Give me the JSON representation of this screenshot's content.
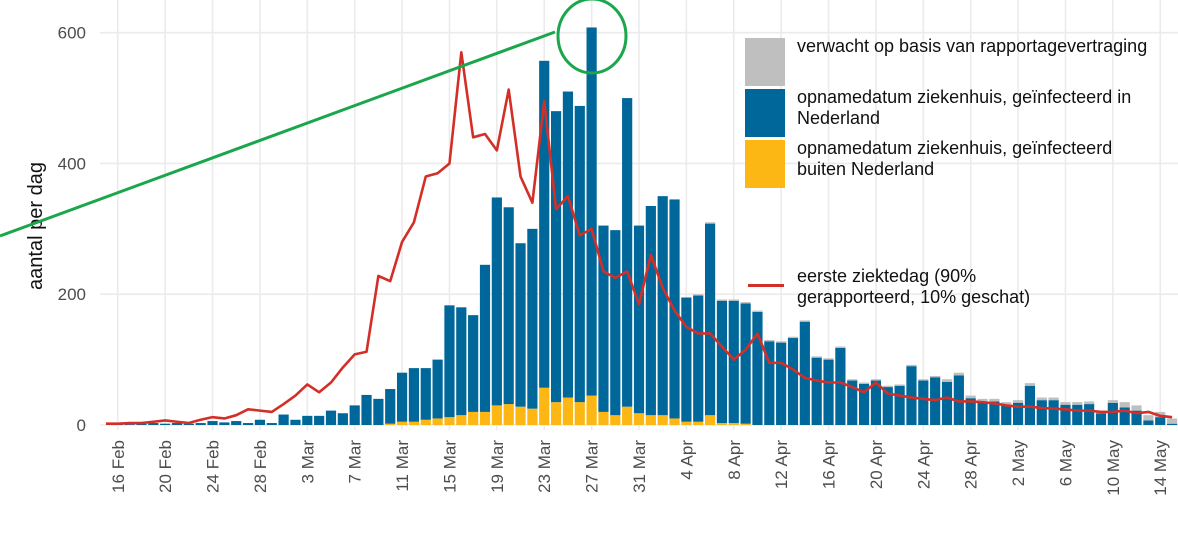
{
  "chart_data": {
    "type": "bar",
    "stacked": true,
    "y_label": "aantal per dag",
    "ylim": [
      0,
      650
    ],
    "yticks": [
      0,
      200,
      400,
      600
    ],
    "grid": true,
    "legend": "top-right",
    "categories": [
      null,
      "16 Feb",
      null,
      null,
      null,
      "20 Feb",
      null,
      null,
      null,
      "24 Feb",
      null,
      null,
      null,
      "28 Feb",
      null,
      null,
      null,
      "3 Mar",
      null,
      null,
      null,
      "7 Mar",
      null,
      null,
      null,
      "11 Mar",
      null,
      null,
      null,
      "15 Mar",
      null,
      null,
      null,
      "19 Mar",
      null,
      null,
      null,
      "23 Mar",
      null,
      null,
      null,
      "27 Mar",
      null,
      null,
      null,
      "31 Mar",
      null,
      null,
      null,
      "4 Apr",
      null,
      null,
      null,
      "8 Apr",
      null,
      null,
      null,
      "12 Apr",
      null,
      null,
      null,
      "16 Apr",
      null,
      null,
      null,
      "20 Apr",
      null,
      null,
      null,
      "24 Apr",
      null,
      null,
      null,
      "28 Apr",
      null,
      null,
      null,
      "2 May",
      null,
      null,
      null,
      "6 May",
      null,
      null,
      null,
      "10 May",
      null,
      null,
      null,
      "14 May",
      null
    ],
    "series": [
      {
        "name": "verwacht op basis van rapportagevertraging",
        "color": "#bfbfbf",
        "type": "bar",
        "values": [
          0,
          0,
          0,
          0,
          0,
          0,
          0,
          0,
          0,
          0,
          0,
          0,
          0,
          0,
          0,
          0,
          0,
          0,
          0,
          0,
          0,
          0,
          0,
          0,
          0,
          0,
          0,
          0,
          0,
          0,
          0,
          0,
          0,
          0,
          0,
          0,
          0,
          0,
          0,
          0,
          0,
          0,
          0,
          0,
          0,
          0,
          0,
          0,
          0,
          0,
          2,
          2,
          2,
          2,
          2,
          2,
          2,
          2,
          2,
          2,
          2,
          2,
          2,
          2,
          2,
          2,
          2,
          2,
          2,
          2,
          2,
          4,
          4,
          4,
          4,
          4,
          4,
          4,
          4,
          4,
          4,
          4,
          4,
          4,
          4,
          4,
          8,
          8,
          8,
          8,
          8
        ]
      },
      {
        "name": "opnamedatum ziekenhuis, geïnfecteerd in Nederland",
        "color": "#00679b",
        "type": "bar",
        "values": [
          0,
          2,
          1,
          2,
          3,
          2,
          3,
          2,
          3,
          6,
          4,
          6,
          3,
          8,
          3,
          16,
          8,
          14,
          14,
          22,
          18,
          30,
          46,
          40,
          53,
          75,
          82,
          79,
          90,
          171,
          165,
          148,
          225,
          318,
          301,
          250,
          275,
          500,
          445,
          468,
          453,
          563,
          285,
          283,
          472,
          287,
          320,
          335,
          335,
          190,
          193,
          293,
          187,
          187,
          184,
          173,
          128,
          126,
          133,
          158,
          103,
          100,
          118,
          68,
          63,
          68,
          58,
          60,
          90,
          68,
          73,
          66,
          76,
          41,
          36,
          36,
          31,
          34,
          60,
          38,
          38,
          31,
          31,
          32,
          18,
          34,
          27,
          22,
          7,
          12,
          2
        ]
      },
      {
        "name": "opnamedatum ziekenhuis, geïnfecteerd buiten Nederland",
        "color": "#fcb714",
        "type": "bar",
        "values": [
          0,
          0,
          0,
          0,
          0,
          0,
          0,
          0,
          0,
          0,
          0,
          0,
          0,
          0,
          0,
          0,
          0,
          0,
          0,
          0,
          0,
          0,
          0,
          0,
          2,
          5,
          5,
          8,
          10,
          12,
          15,
          20,
          20,
          30,
          32,
          28,
          25,
          57,
          35,
          42,
          35,
          45,
          20,
          15,
          28,
          18,
          15,
          15,
          10,
          5,
          5,
          15,
          3,
          3,
          2,
          0,
          0,
          0,
          0,
          0,
          0,
          0,
          0,
          0,
          0,
          0,
          0,
          0,
          0,
          0,
          0,
          0,
          0,
          0,
          0,
          0,
          0,
          0,
          0,
          0,
          0,
          0,
          0,
          0,
          0,
          0,
          0,
          0,
          0,
          0,
          0
        ]
      },
      {
        "name": "eerste ziektedag (90% gerapporteerd, 10% geschat)",
        "color": "#d42f27",
        "type": "line",
        "values": [
          2,
          2,
          3,
          3,
          5,
          7,
          5,
          3,
          8,
          12,
          10,
          15,
          24,
          22,
          20,
          32,
          45,
          62,
          50,
          65,
          88,
          108,
          112,
          228,
          220,
          280,
          310,
          380,
          385,
          400,
          570,
          440,
          445,
          420,
          513,
          380,
          340,
          495,
          330,
          350,
          290,
          300,
          235,
          225,
          235,
          185,
          260,
          210,
          175,
          150,
          140,
          140,
          120,
          100,
          115,
          140,
          95,
          95,
          85,
          72,
          68,
          65,
          65,
          58,
          50,
          65,
          48,
          45,
          42,
          40,
          38,
          42,
          36,
          36,
          35,
          33,
          30,
          28,
          28,
          26,
          25,
          24,
          22,
          22,
          20,
          20,
          22,
          18,
          20,
          14,
          12
        ]
      }
    ]
  }
}
